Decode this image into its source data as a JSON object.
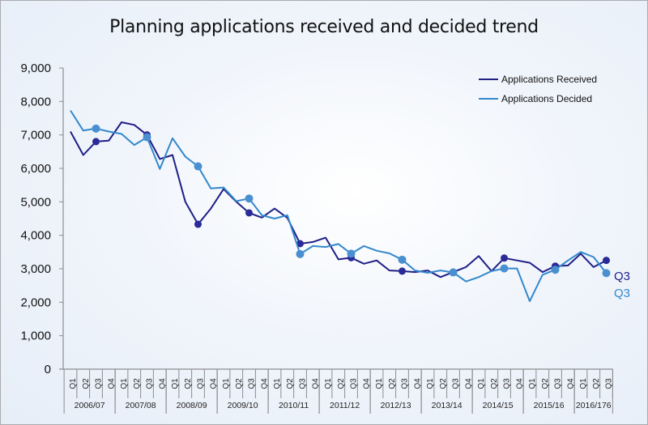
{
  "chart_data": {
    "type": "line",
    "title": "Planning applications received and decided trend",
    "xlabel": "",
    "ylabel": "",
    "ylim": [
      0,
      9000
    ],
    "yticks": [
      "0",
      "1,000",
      "2,000",
      "3,000",
      "4,000",
      "5,000",
      "6,000",
      "7,000",
      "8,000",
      "9,000"
    ],
    "ytick_values": [
      0,
      1000,
      2000,
      3000,
      4000,
      5000,
      6000,
      7000,
      8000,
      9000
    ],
    "grid": false,
    "legend_position": "top-right",
    "years": [
      {
        "label": "2006/07",
        "quarters": [
          "Q1",
          "Q2",
          "Q3",
          "Q4"
        ]
      },
      {
        "label": "2007/08",
        "quarters": [
          "Q1",
          "Q2",
          "Q3",
          "Q4"
        ]
      },
      {
        "label": "2008/09",
        "quarters": [
          "Q1",
          "Q2",
          "Q3",
          "Q4"
        ]
      },
      {
        "label": "2009/10",
        "quarters": [
          "Q1",
          "Q2",
          "Q3",
          "Q4"
        ]
      },
      {
        "label": "2010/11",
        "quarters": [
          "Q1",
          "Q2",
          "Q3",
          "Q4"
        ]
      },
      {
        "label": "2011/12",
        "quarters": [
          "Q1",
          "Q2",
          "Q3",
          "Q4"
        ]
      },
      {
        "label": "2012/13",
        "quarters": [
          "Q1",
          "Q2",
          "Q3",
          "Q4"
        ]
      },
      {
        "label": "2013/14",
        "quarters": [
          "Q1",
          "Q2",
          "Q3",
          "Q4"
        ]
      },
      {
        "label": "2014/15",
        "quarters": [
          "Q1",
          "Q2",
          "Q3",
          "Q4"
        ]
      },
      {
        "label": "2015/16",
        "quarters": [
          "Q1",
          "Q2",
          "Q3",
          "Q4"
        ]
      },
      {
        "label": "2016/176",
        "quarters": [
          "Q1",
          "Q2",
          "Q3"
        ]
      }
    ],
    "series": [
      {
        "name": "Applications Received",
        "color": "#1f1f86",
        "end_label": "Q3",
        "values": [
          7100,
          6400,
          6800,
          6830,
          7380,
          7300,
          7000,
          6280,
          6400,
          5000,
          4330,
          4800,
          5380,
          5000,
          4670,
          4530,
          4800,
          4520,
          3750,
          3800,
          3930,
          3280,
          3330,
          3150,
          3250,
          2950,
          2930,
          2900,
          2950,
          2750,
          2900,
          3050,
          3380,
          2930,
          3320,
          3250,
          3180,
          2900,
          3080,
          3100,
          3450,
          3050,
          3250
        ]
      },
      {
        "name": "Applications Decided",
        "color": "#3388cc",
        "end_label": "Q3",
        "values": [
          7730,
          7130,
          7190,
          7100,
          7030,
          6700,
          6930,
          5980,
          6900,
          6350,
          6060,
          5400,
          5430,
          5020,
          5100,
          4600,
          4500,
          4600,
          3440,
          3680,
          3650,
          3740,
          3450,
          3680,
          3540,
          3460,
          3270,
          2950,
          2880,
          2950,
          2890,
          2620,
          2750,
          2930,
          3010,
          3010,
          2030,
          2820,
          2970,
          3250,
          3500,
          3350,
          2870
        ]
      }
    ],
    "marker_quarter": "Q3"
  }
}
